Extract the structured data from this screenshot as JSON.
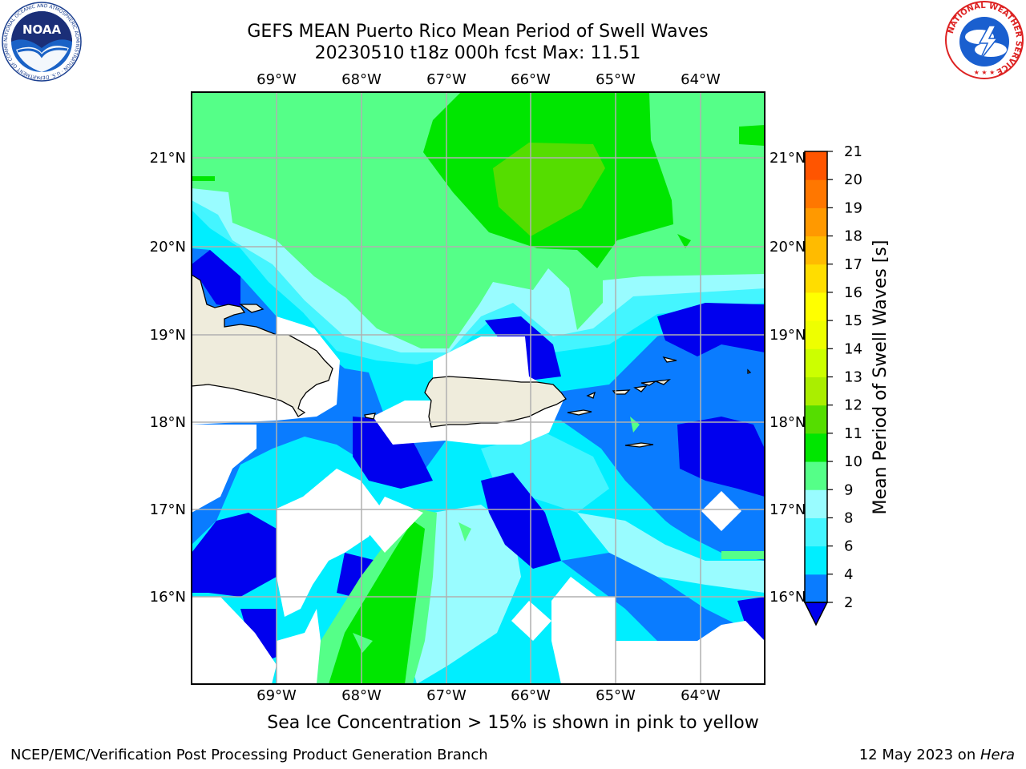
{
  "header": {
    "title_line1": "GEFS MEAN Puerto Rico Mean Period of Swell Waves",
    "title_line2": "20230510 t18z 000h fcst   Max: 11.51"
  },
  "map": {
    "lon_labels": [
      "69°W",
      "68°W",
      "67°W",
      "66°W",
      "65°W",
      "64°W"
    ],
    "lat_labels": [
      "21°N",
      "20°N",
      "19°N",
      "18°N",
      "17°N",
      "16°N"
    ],
    "land_color": "#efecdc",
    "grid_color": "#b0b0b0"
  },
  "colorbar": {
    "label": "Mean Period of Swell Waves [s]",
    "ticks": [
      "21",
      "20",
      "19",
      "18",
      "17",
      "16",
      "15",
      "14",
      "13",
      "12",
      "11",
      "10",
      "9",
      "8",
      "6",
      "4",
      "2"
    ],
    "colors": [
      "#0000ee",
      "#0a7cff",
      "#00eeff",
      "#44f5ff",
      "#99fcff",
      "#55ff88",
      "#00e600",
      "#55dd00",
      "#aaee00",
      "#ccff00",
      "#eeff00",
      "#ffff00",
      "#ffdd00",
      "#ffbb00",
      "#ff9900",
      "#ff7700",
      "#ff5500",
      "#ff3300",
      "#ff0000"
    ]
  },
  "footer": {
    "note": "Sea Ice Concentration > 15% is shown in pink to yellow",
    "left": "NCEP/EMC/Verification Post Processing Product Generation Branch",
    "right_text": "12 May 2023 on ",
    "right_host": "Hera"
  },
  "logos": {
    "noaa_text": "NOAA",
    "noaa_ring": "NATIONAL OCEANIC AND ATMOSPHERIC ADMINISTRATION · U.S. DEPARTMENT OF COMMERCE ·",
    "nws_ring": "NATIONAL WEATHER SERVICE"
  }
}
